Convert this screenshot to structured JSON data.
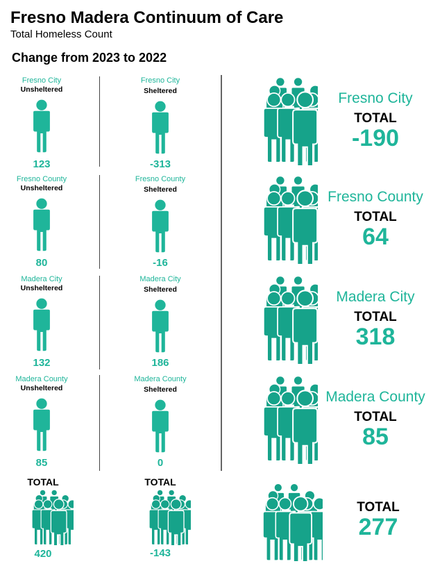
{
  "header": {
    "title": "Fresno Madera Continuum of Care",
    "subtitle": "Total Homeless Count",
    "change_label": "Change from 2023 to 2022"
  },
  "colors": {
    "accent": "#1fb59a",
    "crowd": "#16a38a"
  },
  "rows": [
    {
      "region": "Fresno City",
      "unsheltered_label": "Unsheltered",
      "unsheltered": "123",
      "sheltered_label": "Sheltered",
      "sheltered": "-313",
      "total_label": "TOTAL",
      "total": "-190"
    },
    {
      "region": "Fresno County",
      "unsheltered_label": "Unsheltered",
      "unsheltered": "80",
      "sheltered_label": "Sheltered",
      "sheltered": "-16",
      "total_label": "TOTAL",
      "total": "64"
    },
    {
      "region": "Madera City",
      "unsheltered_label": "Unsheltered",
      "unsheltered": "132",
      "sheltered_label": "Sheltered",
      "sheltered": "186",
      "total_label": "TOTAL",
      "total": "318"
    },
    {
      "region": "Madera County",
      "unsheltered_label": "Unsheltered",
      "unsheltered": "85",
      "sheltered_label": "Sheltered",
      "sheltered": "0",
      "total_label": "TOTAL",
      "total": "85"
    }
  ],
  "totals": {
    "unsheltered_label": "TOTAL",
    "unsheltered": "420",
    "sheltered_label": "TOTAL",
    "sheltered": "-143",
    "grand_label": "TOTAL",
    "grand": "277"
  },
  "icons": {
    "single": "person-icon",
    "crowd": "crowd-icon"
  }
}
